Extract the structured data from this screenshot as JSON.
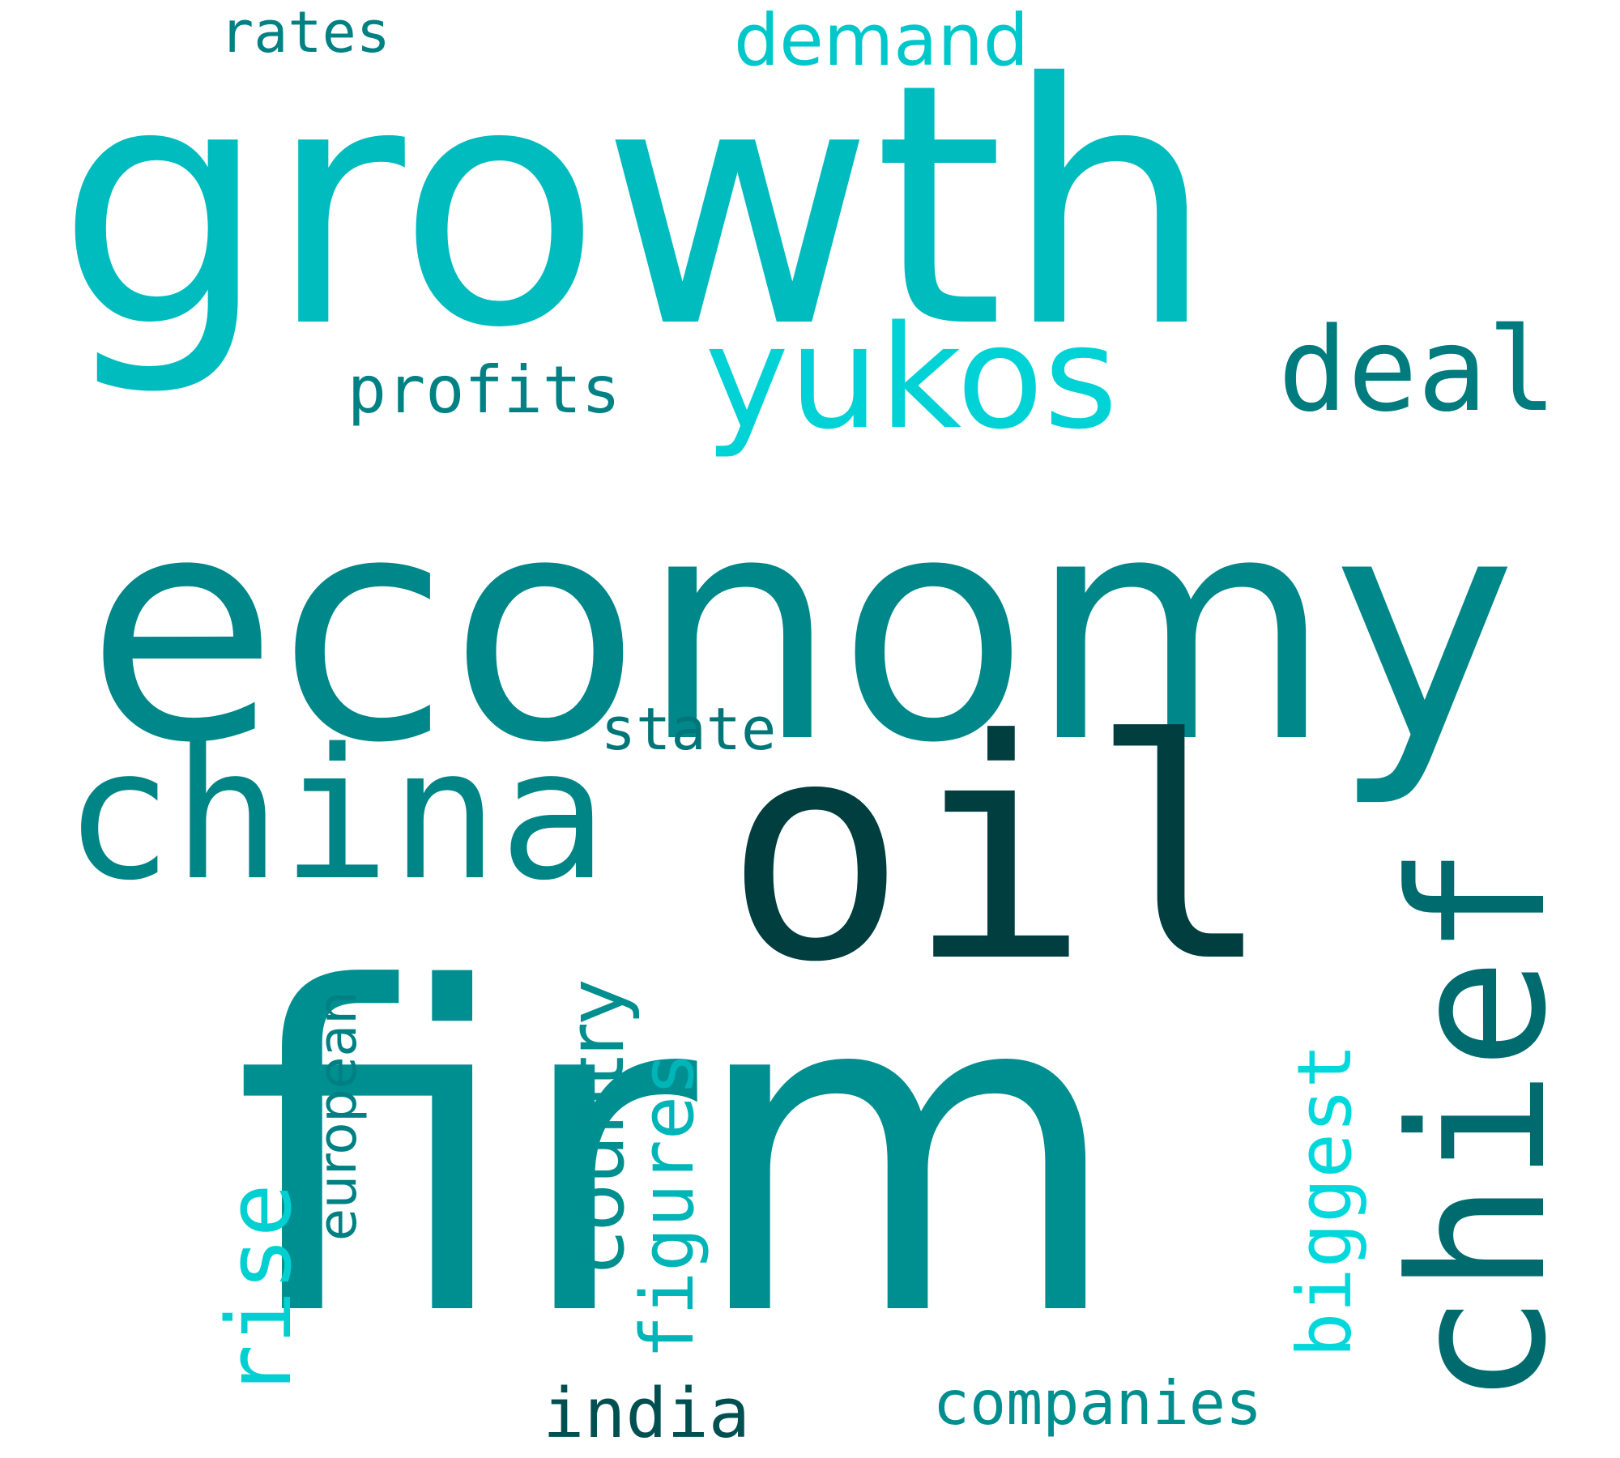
{
  "words": [
    {
      "key": "growth",
      "text": "growth",
      "color": "#00bcbf"
    },
    {
      "key": "economy",
      "text": "economy",
      "color": "#008789"
    },
    {
      "key": "firm",
      "text": "firm",
      "color": "#008f90"
    },
    {
      "key": "oil",
      "text": "oil",
      "color": "#003e3f"
    },
    {
      "key": "china",
      "text": "china",
      "color": "#008587"
    },
    {
      "key": "chief",
      "text": "chief",
      "color": "#006b6e"
    },
    {
      "key": "yukos",
      "text": "yukos",
      "color": "#00d2d6"
    },
    {
      "key": "deal",
      "text": "deal",
      "color": "#007c7e"
    },
    {
      "key": "rise",
      "text": "rise",
      "color": "#00d0d2"
    },
    {
      "key": "european",
      "text": "european",
      "color": "#008082"
    },
    {
      "key": "country",
      "text": "country",
      "color": "#008e8f"
    },
    {
      "key": "figures",
      "text": "figures",
      "color": "#00b5b8"
    },
    {
      "key": "biggest",
      "text": "biggest",
      "color": "#00d8dc"
    },
    {
      "key": "companies",
      "text": "companies",
      "color": "#008e8f"
    },
    {
      "key": "india",
      "text": "india",
      "color": "#004f51"
    },
    {
      "key": "state",
      "text": "state",
      "color": "#007679"
    },
    {
      "key": "profits",
      "text": "profits",
      "color": "#008284"
    },
    {
      "key": "rates",
      "text": "rates",
      "color": "#008183"
    },
    {
      "key": "demand",
      "text": "demand",
      "color": "#00c7ca"
    }
  ]
}
